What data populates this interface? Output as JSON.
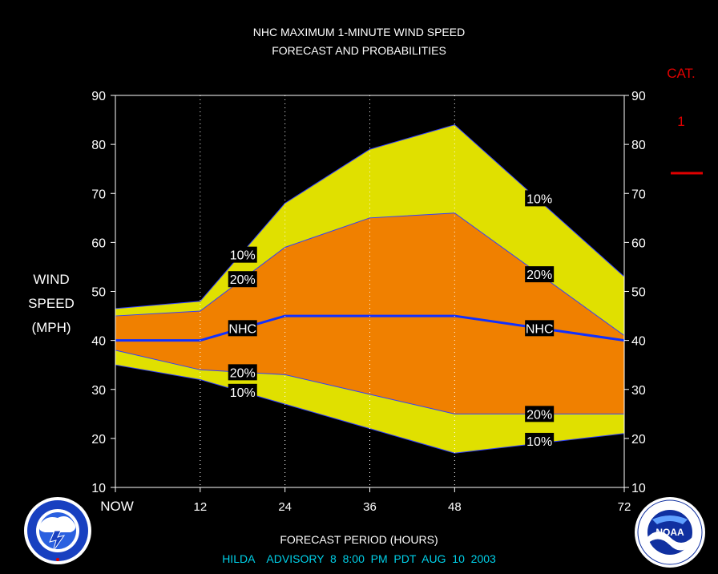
{
  "header": {
    "title_line1": "NHC MAXIMUM 1-MINUTE WIND SPEED",
    "title_line2": "FORECAST AND PROBABILITIES"
  },
  "category": {
    "label": "CAT.",
    "value": "1",
    "marker_color": "#e00000"
  },
  "y_axis_title": [
    "WIND",
    "SPEED",
    "(MPH)"
  ],
  "x_axis_title": "FORECAST PERIOD (HOURS)",
  "advisory": "HILDA    ADVISORY  8  8:00  PM  PDT  AUG  10  2003",
  "logos": {
    "left": {
      "icon": "nws-logo-icon"
    },
    "right": {
      "icon": "noaa-logo-icon",
      "text": "NOAA"
    }
  },
  "colors": {
    "background": "#000000",
    "outer_band": "#e0e000",
    "inner_band": "#f08000",
    "nhc_line": "#1030ff",
    "boundary_line": "#3040ff",
    "grid": "#ffffff",
    "label_box": "#000000"
  },
  "chart_data": {
    "type": "area",
    "x": [
      0,
      12,
      24,
      36,
      48,
      72
    ],
    "x_tick_labels": [
      "NOW",
      "12",
      "24",
      "36",
      "48",
      "72"
    ],
    "xlim": [
      0,
      72
    ],
    "ylim": [
      10,
      90
    ],
    "y_ticks": [
      10,
      20,
      30,
      40,
      50,
      60,
      70,
      80,
      90
    ],
    "vertical_gridlines": [
      12,
      24,
      36,
      48
    ],
    "series": [
      {
        "name": "10%",
        "band": "upper",
        "x": [
          0,
          12,
          24,
          36,
          48,
          72
        ],
        "values": [
          46.5,
          48,
          68,
          79,
          84,
          53
        ]
      },
      {
        "name": "20%",
        "band": "upper",
        "x": [
          0,
          12,
          24,
          36,
          48,
          72
        ],
        "values": [
          45,
          46,
          59,
          65,
          66,
          41
        ]
      },
      {
        "name": "NHC",
        "x": [
          0,
          12,
          24,
          36,
          48,
          72
        ],
        "values": [
          40,
          40,
          45,
          45,
          45,
          40
        ]
      },
      {
        "name": "20%",
        "band": "lower",
        "x": [
          0,
          12,
          24,
          36,
          48,
          72
        ],
        "values": [
          38,
          34,
          33,
          29,
          25,
          25
        ]
      },
      {
        "name": "10%",
        "band": "lower",
        "x": [
          0,
          12,
          24,
          36,
          48,
          72
        ],
        "values": [
          35,
          32,
          27,
          22,
          17,
          21
        ]
      }
    ],
    "annotations": [
      {
        "text": "10%",
        "x": 18,
        "y": 57.5
      },
      {
        "text": "20%",
        "x": 18,
        "y": 52.5
      },
      {
        "text": "NHC",
        "x": 18,
        "y": 42.5
      },
      {
        "text": "20%",
        "x": 18,
        "y": 33.5
      },
      {
        "text": "10%",
        "x": 18,
        "y": 29.5
      },
      {
        "text": "10%",
        "x": 60,
        "y": 69
      },
      {
        "text": "20%",
        "x": 60,
        "y": 53.5
      },
      {
        "text": "NHC",
        "x": 60,
        "y": 42.5
      },
      {
        "text": "20%",
        "x": 60,
        "y": 25
      },
      {
        "text": "10%",
        "x": 60,
        "y": 19.5
      }
    ]
  }
}
